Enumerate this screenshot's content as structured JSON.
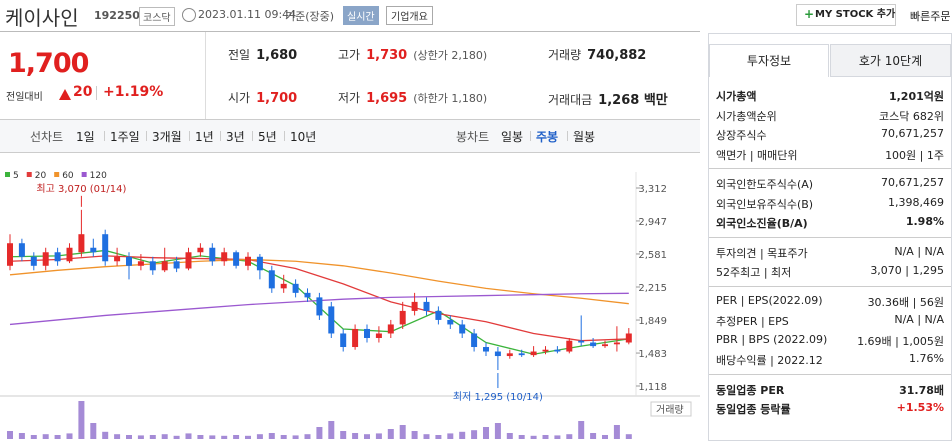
{
  "header": {
    "name": "케이사인",
    "code": "192250",
    "market": "코스닥",
    "datetime": "2023.01.11 09:44",
    "basis": "기준(장중)",
    "realtime": "실시간",
    "company": "기업개요",
    "mystock": "MY STOCK 추가",
    "fast_order": "빠른주문"
  },
  "price": {
    "current": "1,700",
    "change_label": "전일대비",
    "change": "20",
    "change_pct": "+1.19%"
  },
  "stats": [
    {
      "label": "전일",
      "value": "1,680",
      "color": "#222222"
    },
    {
      "label": "고가",
      "value": "1,730",
      "note": "(상한가 2,180)",
      "color": "#e0201f"
    },
    {
      "label": "거래량",
      "value": "740,882",
      "color": "#222222"
    },
    {
      "label": "시가",
      "value": "1,700",
      "color": "#e0201f"
    },
    {
      "label": "저가",
      "value": "1,695",
      "note": "(하한가 1,180)",
      "color": "#e0201f"
    },
    {
      "label": "거래대금",
      "value": "1,268 백만",
      "color": "#222222"
    }
  ],
  "period_tabs": [
    "선차트",
    "1일",
    "1주일",
    "3개월",
    "1년",
    "3년",
    "5년",
    "10년"
  ],
  "candle_tabs": [
    "봉차트",
    "일봉",
    "주봉",
    "월봉"
  ],
  "info_tabs": [
    "투자정보",
    "호가 10단계"
  ],
  "info_sections": [
    [
      [
        "시가총액",
        "1,201억원"
      ],
      [
        "시가총액순위",
        "코스닥 682위"
      ],
      [
        "상장주식수",
        "70,671,257"
      ],
      [
        "액면가 | 매매단위",
        "100원 | 1주"
      ]
    ],
    [
      [
        "외국인한도주식수(A)",
        "70,671,257"
      ],
      [
        "외국인보유주식수(B)",
        "1,398,469"
      ],
      [
        "외국인소진율(B/A)",
        "1.98%"
      ]
    ],
    [
      [
        "투자의견 | 목표주가",
        "N/A | N/A"
      ],
      [
        "52주최고 | 최저",
        "3,070 | 1,295"
      ]
    ],
    [
      [
        "PER | EPS(2022.09)",
        "30.36배 | 56원"
      ],
      [
        "추정PER | EPS",
        "N/A | N/A"
      ],
      [
        "PBR | BPS (2022.09)",
        "1.69배 | 1,005원"
      ],
      [
        "배당수익률 | 2022.12",
        "1.76%"
      ]
    ],
    [
      [
        "동일업종 PER",
        "31.78배"
      ],
      [
        "동일업종 등락률",
        "+1.53%"
      ]
    ]
  ],
  "chart": {
    "type": "candlestick",
    "up_color": "#e52a2a",
    "down_color": "#1f6fe0",
    "ylim": [
      1118,
      3312
    ],
    "yticks": [
      {
        "value": 1118,
        "label": "1,118"
      },
      {
        "value": 1483,
        "label": "1,483"
      },
      {
        "value": 1849,
        "label": "1,849"
      },
      {
        "value": 2215,
        "label": "2,215"
      },
      {
        "value": 2581,
        "label": "2,581"
      },
      {
        "value": 2947,
        "label": "2,947"
      },
      {
        "value": 3312,
        "label": "3,312"
      }
    ],
    "candles": [
      {
        "open": 2450,
        "close": 2700,
        "high": 2800,
        "low": 2400
      },
      {
        "open": 2700,
        "close": 2550,
        "high": 2750,
        "low": 2500
      },
      {
        "open": 2550,
        "close": 2450,
        "high": 2600,
        "low": 2400
      },
      {
        "open": 2450,
        "close": 2600,
        "high": 2650,
        "low": 2400
      },
      {
        "open": 2600,
        "close": 2500,
        "high": 2650,
        "low": 2450
      },
      {
        "open": 2500,
        "close": 2650,
        "high": 2700,
        "low": 2480
      },
      {
        "open": 2600,
        "close": 2800,
        "high": 3070,
        "low": 2550
      },
      {
        "open": 2650,
        "close": 2600,
        "high": 2750,
        "low": 2550
      },
      {
        "open": 2800,
        "close": 2500,
        "high": 2850,
        "low": 2450
      },
      {
        "open": 2500,
        "close": 2550,
        "high": 2650,
        "low": 2450
      },
      {
        "open": 2550,
        "close": 2450,
        "high": 2600,
        "low": 2300
      },
      {
        "open": 2450,
        "close": 2500,
        "high": 2580,
        "low": 2400
      },
      {
        "open": 2500,
        "close": 2400,
        "high": 2550,
        "low": 2350
      },
      {
        "open": 2400,
        "close": 2500,
        "high": 2650,
        "low": 2380
      },
      {
        "open": 2500,
        "close": 2420,
        "high": 2550,
        "low": 2380
      },
      {
        "open": 2420,
        "close": 2600,
        "high": 2650,
        "low": 2400
      },
      {
        "open": 2600,
        "close": 2650,
        "high": 2700,
        "low": 2550
      },
      {
        "open": 2650,
        "close": 2500,
        "high": 2700,
        "low": 2450
      },
      {
        "open": 2500,
        "close": 2600,
        "high": 2650,
        "low": 2450
      },
      {
        "open": 2600,
        "close": 2450,
        "high": 2620,
        "low": 2420
      },
      {
        "open": 2450,
        "close": 2550,
        "high": 2600,
        "low": 2400
      },
      {
        "open": 2550,
        "close": 2400,
        "high": 2580,
        "low": 2300
      },
      {
        "open": 2400,
        "close": 2200,
        "high": 2450,
        "low": 2150
      },
      {
        "open": 2200,
        "close": 2250,
        "high": 2350,
        "low": 2150
      },
      {
        "open": 2250,
        "close": 2150,
        "high": 2300,
        "low": 2100
      },
      {
        "open": 2150,
        "close": 2100,
        "high": 2200,
        "low": 2050
      },
      {
        "open": 2100,
        "close": 1900,
        "high": 2150,
        "low": 1850
      },
      {
        "open": 2000,
        "close": 1700,
        "high": 2050,
        "low": 1650
      },
      {
        "open": 1700,
        "close": 1550,
        "high": 1750,
        "low": 1500
      },
      {
        "open": 1550,
        "close": 1750,
        "high": 1800,
        "low": 1520
      },
      {
        "open": 1750,
        "close": 1650,
        "high": 1800,
        "low": 1600
      },
      {
        "open": 1650,
        "close": 1700,
        "high": 1780,
        "low": 1600
      },
      {
        "open": 1700,
        "close": 1800,
        "high": 1850,
        "low": 1650
      },
      {
        "open": 1800,
        "close": 1950,
        "high": 2050,
        "low": 1750
      },
      {
        "open": 1950,
        "close": 2050,
        "high": 2150,
        "low": 1900
      },
      {
        "open": 2050,
        "close": 1950,
        "high": 2100,
        "low": 1900
      },
      {
        "open": 1950,
        "close": 1850,
        "high": 2000,
        "low": 1800
      },
      {
        "open": 1850,
        "close": 1800,
        "high": 1900,
        "low": 1750
      },
      {
        "open": 1800,
        "close": 1700,
        "high": 1850,
        "low": 1650
      },
      {
        "open": 1700,
        "close": 1550,
        "high": 1750,
        "low": 1500
      },
      {
        "open": 1550,
        "close": 1500,
        "high": 1600,
        "low": 1450
      },
      {
        "open": 1500,
        "close": 1450,
        "high": 1550,
        "low": 1295
      },
      {
        "open": 1450,
        "close": 1480,
        "high": 1520,
        "low": 1420
      },
      {
        "open": 1480,
        "close": 1460,
        "high": 1520,
        "low": 1440
      },
      {
        "open": 1460,
        "close": 1500,
        "high": 1560,
        "low": 1440
      },
      {
        "open": 1500,
        "close": 1520,
        "high": 1560,
        "low": 1470
      },
      {
        "open": 1520,
        "close": 1500,
        "high": 1560,
        "low": 1480
      },
      {
        "open": 1500,
        "close": 1620,
        "high": 1650,
        "low": 1480
      },
      {
        "open": 1620,
        "close": 1600,
        "high": 1900,
        "low": 1560
      },
      {
        "open": 1600,
        "close": 1560,
        "high": 1650,
        "low": 1540
      },
      {
        "open": 1560,
        "close": 1580,
        "high": 1620,
        "low": 1540
      },
      {
        "open": 1580,
        "close": 1600,
        "high": 1780,
        "low": 1500
      },
      {
        "open": 1600,
        "close": 1700,
        "high": 1760,
        "low": 1580
      }
    ],
    "ma": {
      "x": [
        0,
        4,
        8,
        12,
        16,
        20,
        24,
        28,
        32,
        36,
        40,
        44,
        48,
        52
      ],
      "series": [
        {
          "name": "5",
          "color": "#3cb43c",
          "values": [
            2550,
            2560,
            2620,
            2480,
            2560,
            2500,
            2230,
            1750,
            1720,
            1950,
            1600,
            1470,
            1560,
            1640
          ]
        },
        {
          "name": "20",
          "color": "#e23b3b",
          "values": [
            2500,
            2520,
            2560,
            2540,
            2530,
            2520,
            2420,
            2250,
            2050,
            1920,
            1830,
            1700,
            1620,
            1640
          ]
        },
        {
          "name": "60",
          "color": "#f0932b",
          "values": [
            2350,
            2400,
            2440,
            2470,
            2500,
            2520,
            2500,
            2450,
            2370,
            2280,
            2200,
            2140,
            2090,
            2030
          ]
        },
        {
          "name": "120",
          "color": "#9b59d0",
          "values": [
            1800,
            1850,
            1900,
            1940,
            1980,
            2020,
            2050,
            2080,
            2100,
            2110,
            2120,
            2130,
            2140,
            2145
          ]
        }
      ]
    },
    "volume_label": "거래량",
    "volume_color": "#a58bd6",
    "volume": [
      20,
      15,
      10,
      12,
      10,
      14,
      95,
      40,
      18,
      12,
      10,
      9,
      10,
      12,
      8,
      14,
      10,
      9,
      8,
      10,
      8,
      12,
      15,
      10,
      9,
      12,
      30,
      45,
      20,
      15,
      12,
      14,
      25,
      35,
      20,
      12,
      10,
      14,
      18,
      22,
      30,
      40,
      15,
      10,
      8,
      10,
      9,
      12,
      45,
      15,
      10,
      35,
      12
    ],
    "annotations": [
      {
        "text": "최고 3,070 (01/14)",
        "index": 6,
        "value": 3070
      },
      {
        "text": "최저 1,295 (10/14)",
        "index": 41,
        "value": 1295
      }
    ]
  }
}
